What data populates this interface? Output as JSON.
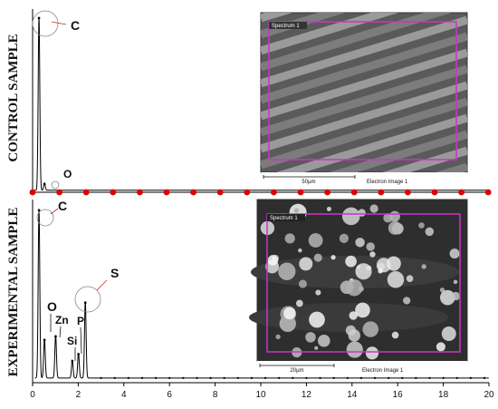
{
  "chart_data": {
    "type": "line",
    "xlim": [
      0,
      20
    ],
    "x_ticks": [
      "0",
      "2",
      "4",
      "6",
      "8",
      "10",
      "12",
      "14",
      "16",
      "18",
      "20"
    ],
    "grid": false,
    "colors": {
      "line": "#000000",
      "divider_marker": "#e00000",
      "annotation_circle": "#888888",
      "sem_box": "#cc33cc"
    },
    "panels": [
      {
        "side_label": "CONTROL SAMPLE",
        "ylim": [
          0,
          100
        ],
        "peaks": [
          {
            "element": "C",
            "x": 0.28,
            "y": 96
          },
          {
            "element": "O",
            "x": 0.52,
            "y": 4
          }
        ],
        "inset": {
          "tag": "Spectrum 1",
          "scale_bar": "50µm",
          "caption": "Electron Image 1"
        }
      },
      {
        "side_label": "EXPERIMENTAL SAMPLE",
        "ylim": [
          0,
          100
        ],
        "peaks": [
          {
            "element": "C",
            "x": 0.28,
            "y": 95
          },
          {
            "element": "O",
            "x": 0.52,
            "y": 22
          },
          {
            "element": "Zn",
            "x": 1.01,
            "y": 24
          },
          {
            "element": "Si",
            "x": 1.74,
            "y": 10
          },
          {
            "element": "P",
            "x": 2.01,
            "y": 14
          },
          {
            "element": "S",
            "x": 2.31,
            "y": 43
          }
        ],
        "inset": {
          "tag": "Spectrum 1",
          "scale_bar": "20µm",
          "caption": "Electron Image 1"
        }
      }
    ]
  }
}
